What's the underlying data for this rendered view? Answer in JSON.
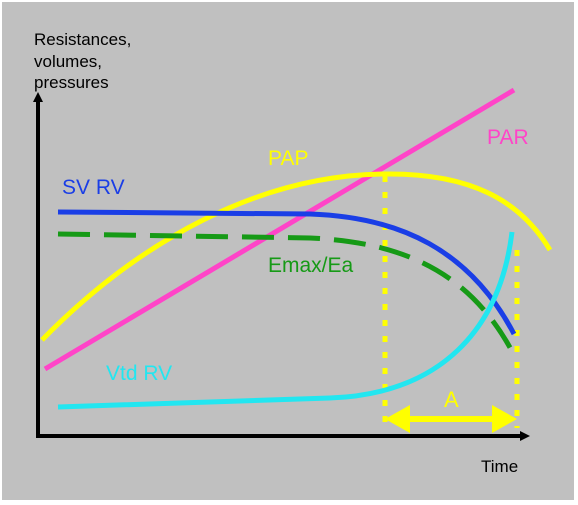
{
  "axes": {
    "y_label_lines": [
      "Resistances,",
      "volumes,",
      "pressures"
    ],
    "x_label": "Time"
  },
  "curves": [
    {
      "key": "par",
      "label": "PAR",
      "color": "#ff44c8"
    },
    {
      "key": "pap",
      "label": "PAP",
      "color": "#ffff00"
    },
    {
      "key": "svrv",
      "label": "SV RV",
      "color": "#1a3ee6"
    },
    {
      "key": "emax",
      "label": "Emax/Ea",
      "color": "#169a16"
    },
    {
      "key": "vtdrv",
      "label": "Vtd RV",
      "color": "#22e6f0"
    }
  ],
  "interval": {
    "label": "A",
    "color": "#ffff00"
  },
  "colors": {
    "panel": "#c0c0c0",
    "axis": "#000000"
  }
}
